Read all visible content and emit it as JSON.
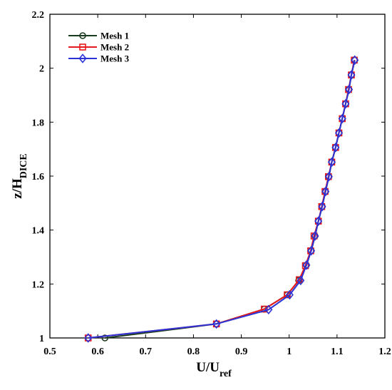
{
  "chart_data": {
    "type": "line",
    "x_axis": {
      "label_main": "U/U",
      "label_sub": "ref",
      "lim": [
        0.5,
        1.2
      ],
      "ticks": [
        "0.5",
        "0.6",
        "0.7",
        "0.8",
        "0.9",
        "1",
        "1.1",
        "1.2"
      ]
    },
    "y_axis": {
      "label_main": "z/H",
      "label_sub": "DICE",
      "lim": [
        1.0,
        2.2
      ],
      "ticks": [
        "1",
        "1.2",
        "1.4",
        "1.6",
        "1.8",
        "2",
        "2.2"
      ]
    },
    "grid": false,
    "legend_position": "top-left",
    "series": [
      {
        "name": "Mesh 1",
        "color": "#1a3a22",
        "marker": "circle",
        "points": [
          [
            0.615,
            1.0
          ],
          [
            0.848,
            1.052
          ],
          [
            0.948,
            1.107
          ],
          [
            0.996,
            1.16
          ],
          [
            1.02,
            1.213
          ],
          [
            1.036,
            1.27
          ],
          [
            1.046,
            1.323
          ],
          [
            1.054,
            1.378
          ],
          [
            1.061,
            1.433
          ],
          [
            1.069,
            1.487
          ],
          [
            1.076,
            1.543
          ],
          [
            1.083,
            1.598
          ],
          [
            1.089,
            1.652
          ],
          [
            1.097,
            1.706
          ],
          [
            1.104,
            1.76
          ],
          [
            1.111,
            1.813
          ],
          [
            1.118,
            1.868
          ],
          [
            1.125,
            1.921
          ],
          [
            1.13,
            1.975
          ],
          [
            1.137,
            2.03
          ]
        ]
      },
      {
        "name": "Mesh 2",
        "color": "#e8191c",
        "marker": "square",
        "points": [
          [
            0.58,
            1.0
          ],
          [
            0.848,
            1.052
          ],
          [
            0.948,
            1.107
          ],
          [
            0.996,
            1.16
          ],
          [
            1.021,
            1.216
          ],
          [
            1.034,
            1.268
          ],
          [
            1.045,
            1.323
          ],
          [
            1.052,
            1.378
          ],
          [
            1.061,
            1.433
          ],
          [
            1.068,
            1.487
          ],
          [
            1.075,
            1.543
          ],
          [
            1.082,
            1.598
          ],
          [
            1.089,
            1.652
          ],
          [
            1.097,
            1.706
          ],
          [
            1.104,
            1.76
          ],
          [
            1.111,
            1.813
          ],
          [
            1.118,
            1.868
          ],
          [
            1.124,
            1.921
          ],
          [
            1.13,
            1.975
          ],
          [
            1.136,
            2.03
          ]
        ]
      },
      {
        "name": "Mesh 3",
        "color": "#2b33d6",
        "marker": "diamond",
        "points": [
          [
            0.58,
            1.0
          ],
          [
            0.848,
            1.052
          ],
          [
            0.957,
            1.105
          ],
          [
            1.001,
            1.16
          ],
          [
            1.024,
            1.213
          ],
          [
            1.036,
            1.27
          ],
          [
            1.046,
            1.323
          ],
          [
            1.054,
            1.378
          ],
          [
            1.061,
            1.433
          ],
          [
            1.069,
            1.487
          ],
          [
            1.076,
            1.543
          ],
          [
            1.083,
            1.598
          ],
          [
            1.089,
            1.652
          ],
          [
            1.097,
            1.706
          ],
          [
            1.104,
            1.76
          ],
          [
            1.111,
            1.813
          ],
          [
            1.118,
            1.868
          ],
          [
            1.125,
            1.921
          ],
          [
            1.13,
            1.975
          ],
          [
            1.137,
            2.03
          ]
        ]
      }
    ]
  }
}
